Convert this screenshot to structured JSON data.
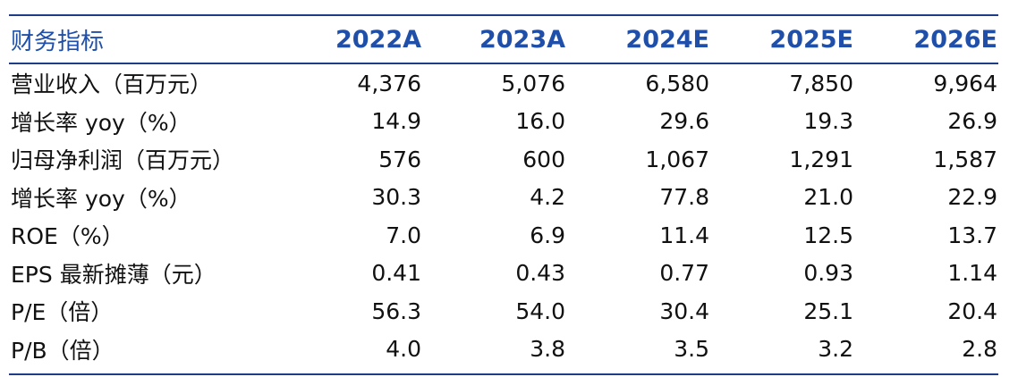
{
  "table": {
    "headers": [
      "财务指标",
      "2022A",
      "2023A",
      "2024E",
      "2025E",
      "2026E"
    ],
    "rows": [
      {
        "label": "营业收入（百万元）",
        "values": [
          "4,376",
          "5,076",
          "6,580",
          "7,850",
          "9,964"
        ]
      },
      {
        "label": "增长率 yoy（%）",
        "values": [
          "14.9",
          "16.0",
          "29.6",
          "19.3",
          "26.9"
        ]
      },
      {
        "label": "归母净利润（百万元）",
        "values": [
          "576",
          "600",
          "1,067",
          "1,291",
          "1,587"
        ]
      },
      {
        "label": "增长率 yoy（%）",
        "values": [
          "30.3",
          "4.2",
          "77.8",
          "21.0",
          "22.9"
        ]
      },
      {
        "label": "ROE（%）",
        "values": [
          "7.0",
          "6.9",
          "11.4",
          "12.5",
          "13.7"
        ]
      },
      {
        "label": "EPS 最新摊薄（元）",
        "values": [
          "0.41",
          "0.43",
          "0.77",
          "0.93",
          "1.14"
        ]
      },
      {
        "label": "P/E（倍）",
        "values": [
          "56.3",
          "54.0",
          "30.4",
          "25.1",
          "20.4"
        ]
      },
      {
        "label": "P/B（倍）",
        "values": [
          "4.0",
          "3.8",
          "3.5",
          "3.2",
          "2.8"
        ]
      }
    ]
  },
  "colors": {
    "header_text": "#1f4fa8",
    "rule": "#1f3c88",
    "body_text": "#111111"
  }
}
